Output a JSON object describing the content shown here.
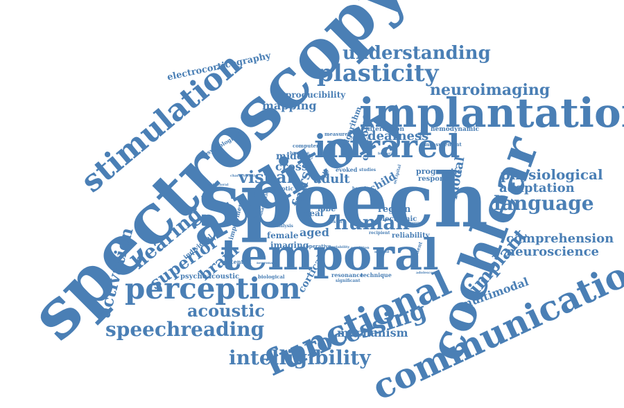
{
  "cloud": {
    "color": "#4a7fb5",
    "words": {
      "spectroscopy": "spectroscopy",
      "speech": "speech",
      "auditory": "auditory",
      "implantation": "implantation",
      "cochlear": "cochlear",
      "temporal": "temporal",
      "communication": "communication",
      "functional": "functional",
      "infrared": "infrared",
      "stimulation": "stimulation",
      "perception": "perception",
      "processing": "processing",
      "plasticity": "plasticity",
      "understanding": "understanding",
      "neuroimaging": "neuroimaging",
      "language": "language",
      "physiological": "physiological",
      "adaptation": "adaptation",
      "intelligibility": "intelligibility",
      "speechreading": "speechreading",
      "acoustic": "acoustic",
      "hearing": "hearing",
      "superior": "superior",
      "activation": "activation",
      "implant": "implant",
      "comprehension": "comprehension",
      "neuroscience": "neuroscience",
      "multimodal": "multimodal",
      "mechanism": "mechanism",
      "electrocorticography": "electrocorticography",
      "reproducibility": "reproducibility",
      "mapping": "mapping",
      "visual": "visual",
      "human": "human",
      "adult": "adult",
      "cross": "cross",
      "middle": "middle",
      "deafness": "deafness",
      "brain": "brain",
      "fnirs": "fnirs",
      "outcome": "outcome",
      "modal": "modal",
      "aged": "aged",
      "female": "female",
      "imaging": "imaging",
      "child": "child",
      "deaf": "deaf",
      "region": "region",
      "lobe": "lobe",
      "cortical": "cortical",
      "algorithm": "algorithm",
      "interaction": "interaction",
      "hemodynamic": "hemodynamic",
      "prognostic": "prognostic",
      "response": "response",
      "electronic": "electronic",
      "reliability": "reliability",
      "psychoacoustic": "psychoacoustic",
      "psychological": "psychological",
      "individual": "individual",
      "impairment": "impairment",
      "potential": "potential",
      "biological": "biological",
      "resonance": "resonance",
      "technique": "technique",
      "evoked": "evoked",
      "male": "male",
      "photic": "photic",
      "magnetic": "magnetic",
      "computer": "computer",
      "measured": "measured",
      "measurement": "measurement",
      "treatment": "treatment",
      "significant": "significant",
      "operative": "operative",
      "benefit": "benefit",
      "recipient": "recipient",
      "occipital": "occipital",
      "studies": "studies",
      "baseline": "baseline",
      "analysis": "analysis",
      "result": "result",
      "variability": "variability",
      "adolescent": "adolescent",
      "characteristic": "characteristic",
      "condition": "condition",
      "postoperative": "postoperative",
      "neuronal": "neuronal",
      "behavioral": "behavioral",
      "bilateral": "bilateral",
      "young": "young",
      "method": "method"
    }
  }
}
